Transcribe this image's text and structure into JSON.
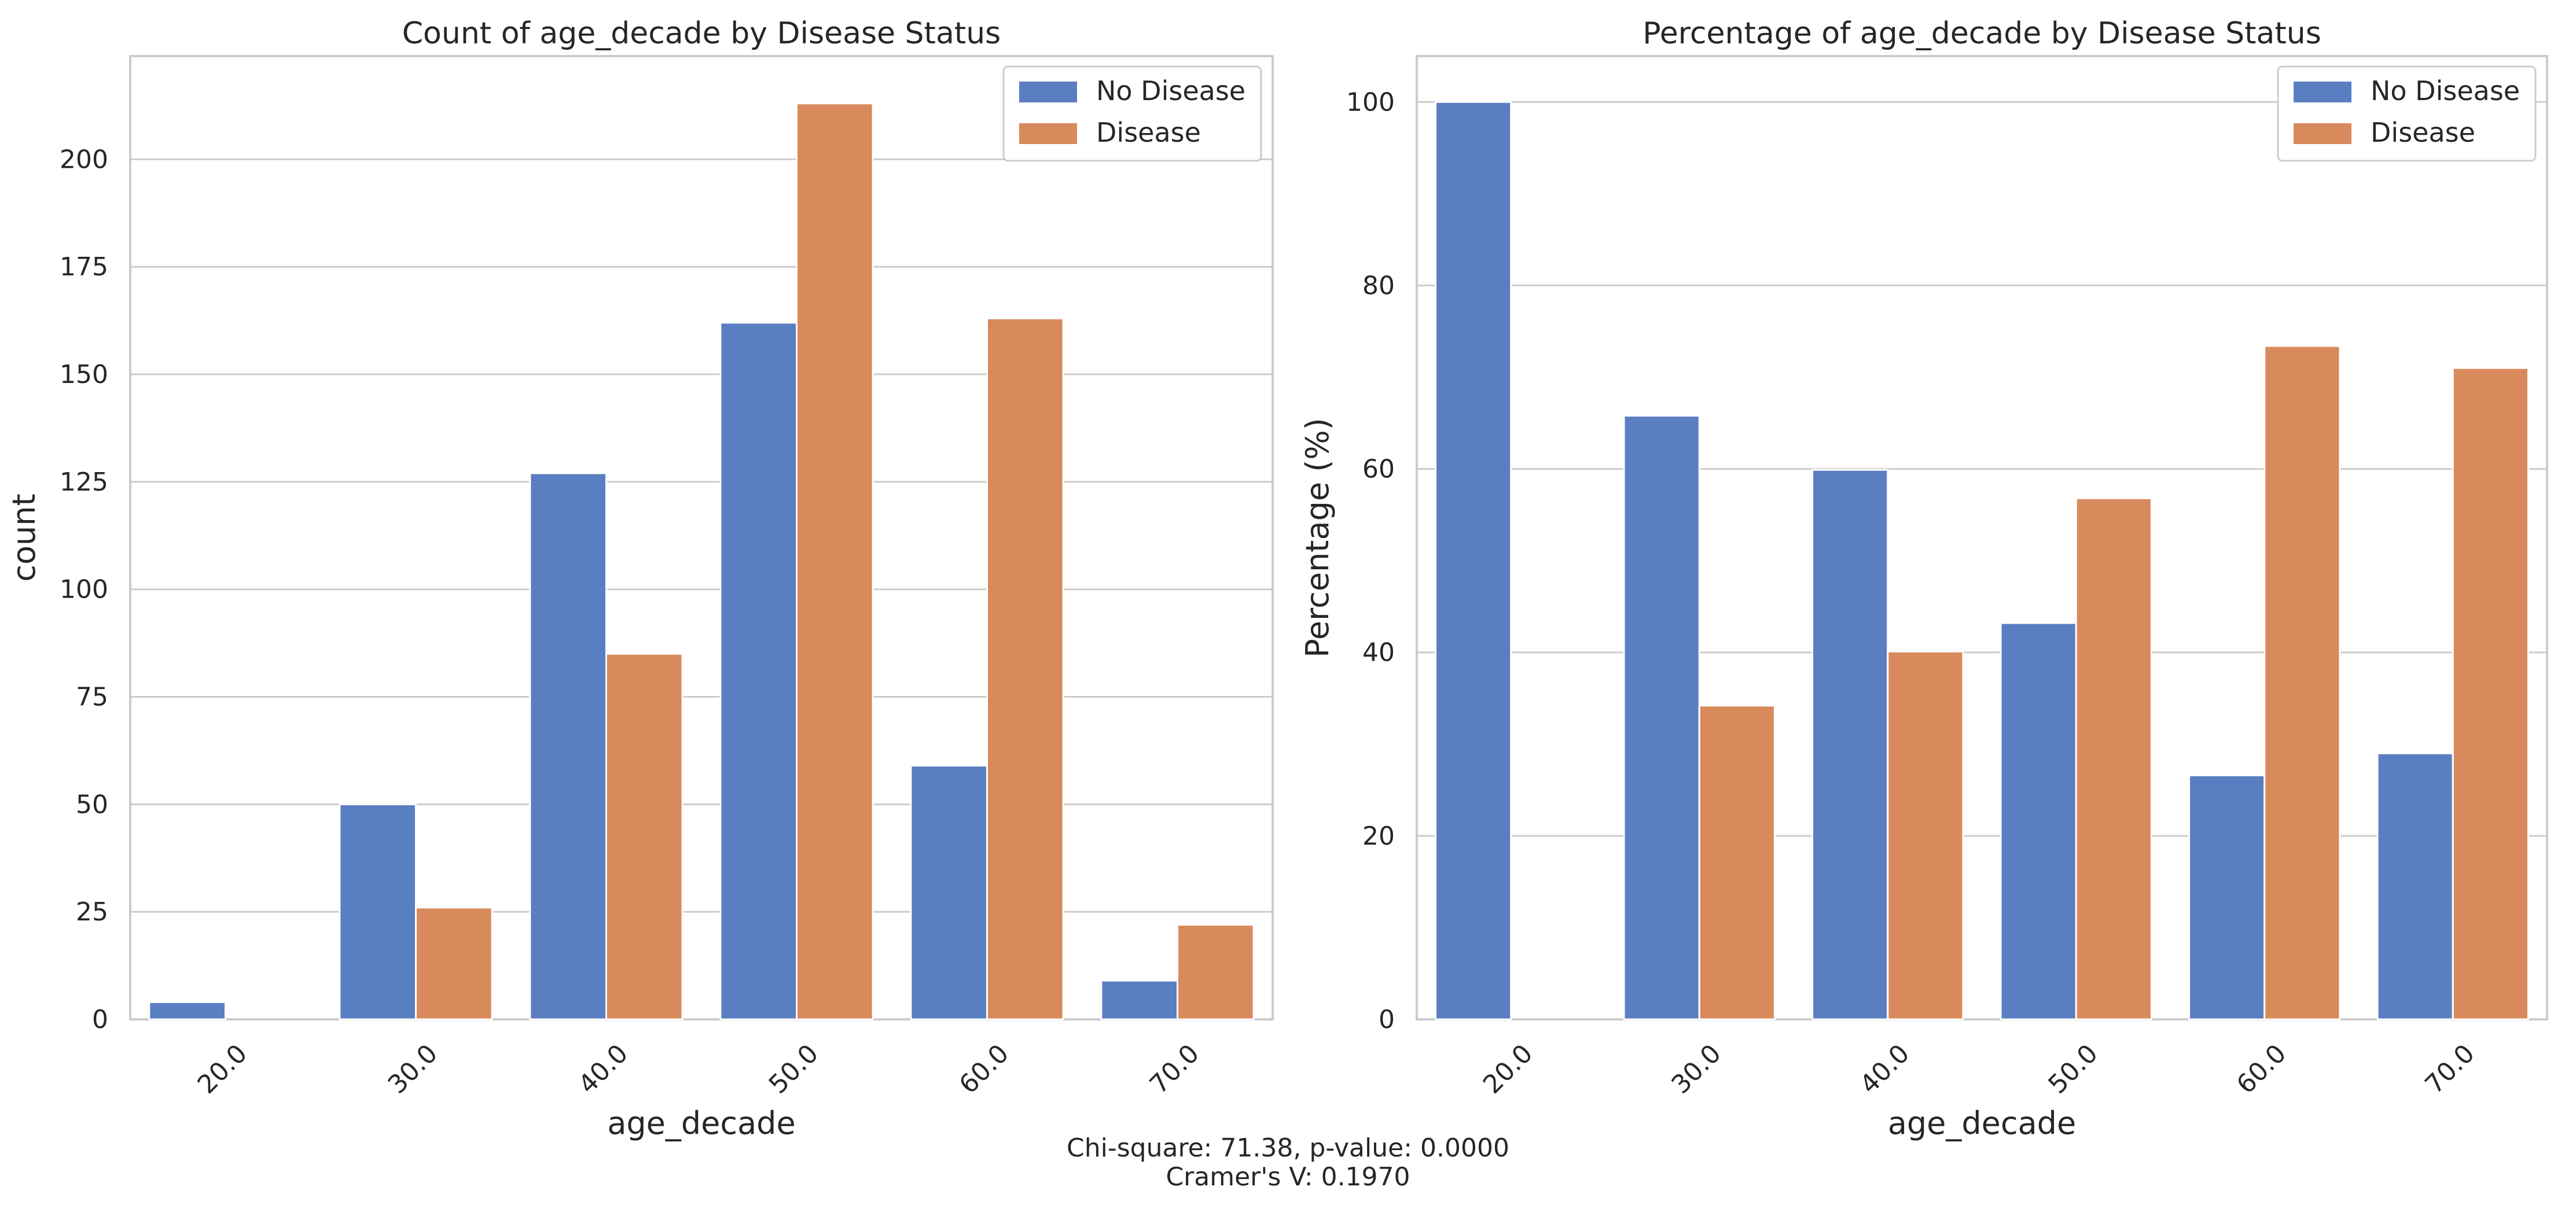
{
  "chart_data": [
    {
      "type": "bar",
      "title": "Count of age_decade by Disease Status",
      "xlabel": "age_decade",
      "ylabel": "count",
      "categories": [
        "20.0",
        "30.0",
        "40.0",
        "50.0",
        "60.0",
        "70.0"
      ],
      "series": [
        {
          "name": "No Disease",
          "values": [
            4,
            50,
            127,
            162,
            59,
            9
          ]
        },
        {
          "name": "Disease",
          "values": [
            0,
            26,
            85,
            213,
            163,
            22
          ]
        }
      ],
      "ylim": [
        0,
        224
      ],
      "yticks": [
        "0",
        "25",
        "50",
        "75",
        "100",
        "125",
        "150",
        "175",
        "200"
      ],
      "grid": true,
      "legend_position": "top-right"
    },
    {
      "type": "bar",
      "title": "Percentage of age_decade by Disease Status",
      "xlabel": "age_decade",
      "ylabel": "Percentage (%)",
      "categories": [
        "20.0",
        "30.0",
        "40.0",
        "50.0",
        "60.0",
        "70.0"
      ],
      "series": [
        {
          "name": "No Disease",
          "values": [
            100,
            65.8,
            59.9,
            43.2,
            26.6,
            29.0
          ]
        },
        {
          "name": "Disease",
          "values": [
            0,
            34.2,
            40.1,
            56.8,
            73.4,
            71.0
          ]
        }
      ],
      "ylim": [
        0,
        105
      ],
      "yticks": [
        "0",
        "20",
        "40",
        "60",
        "80",
        "100"
      ],
      "grid": true,
      "legend_position": "top-right"
    }
  ],
  "colors": {
    "no_disease": "#5a7ec2",
    "disease": "#d98a5c",
    "grid": "#cccccc",
    "spine": "#cccccc"
  },
  "footer": {
    "line1": "Chi-square: 71.38, p-value: 0.0000",
    "line2": "Cramer's V: 0.1970"
  }
}
